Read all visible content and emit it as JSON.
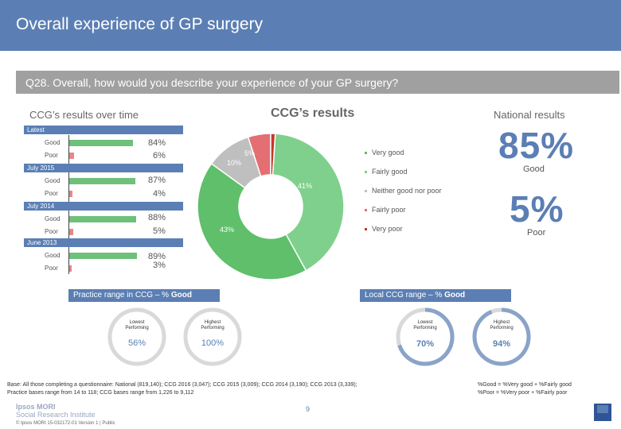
{
  "header": {
    "title": "Overall experience of GP surgery"
  },
  "question": {
    "text": "Q28. Overall, how would you describe your experience of your GP surgery?"
  },
  "sections": {
    "over_time": "CCG’s results over time",
    "ccg_results": "CCG’s results",
    "national": "National results"
  },
  "periods": [
    {
      "label": "Latest",
      "good_label": "Good",
      "poor_label": "Poor",
      "good": "84%",
      "poor": "6%",
      "good_value": 84,
      "poor_value": 6
    },
    {
      "label": "July 2015",
      "good_label": "Good",
      "poor_label": "Poor",
      "good": "87%",
      "poor": "4%",
      "good_value": 87,
      "poor_value": 4
    },
    {
      "label": "July 2014",
      "good_label": "Good",
      "poor_label": "Poor",
      "good": "88%",
      "poor": "5%",
      "good_value": 88,
      "poor_value": 5
    },
    {
      "label": "June 2013",
      "good_label": "Good",
      "poor_label": "Poor",
      "good": "89%",
      "poor": "3%",
      "good_value": 89,
      "poor_value": 3
    }
  ],
  "donut": {
    "slices": [
      {
        "label": "Very good",
        "value": 43,
        "color": "#5fbf6a"
      },
      {
        "label": "Fairly good",
        "value": 41,
        "color": "#7fd08c"
      },
      {
        "label": "Neither good nor poor",
        "value": 10,
        "color": "#bfbfbf"
      },
      {
        "label": "Fairly poor",
        "value": 5,
        "color": "#e36f72"
      },
      {
        "label": "Very poor",
        "value": 1,
        "color": "#c0392b"
      }
    ],
    "labels": {
      "very_good": "43%",
      "fairly_good": "41%",
      "neither": "10%",
      "fairly_poor": "5%"
    },
    "legend": [
      "Very good",
      "Fairly good",
      "Neither good nor poor",
      "Fairly poor",
      "Very poor"
    ],
    "legend_colors": [
      "#5fbf6a",
      "#7fd08c",
      "#bfbfbf",
      "#e36f72",
      "#c0392b"
    ]
  },
  "national": {
    "good_value": "85%",
    "good_label": "Good",
    "poor_value": "5%",
    "poor_label": "Poor"
  },
  "practice_range": {
    "title_prefix": "Practice range in CCG – % ",
    "title_bold": "Good",
    "lowest_label": "Lowest Performing",
    "highest_label": "Highest Performing",
    "lowest_value": "56%",
    "highest_value": "100%"
  },
  "local_range": {
    "title_prefix": "Local CCG range – % ",
    "title_bold": "Good",
    "lowest_label": "Lowest Performing",
    "highest_label": "Highest Performing",
    "lowest_value": "70%",
    "highest_value": "94%",
    "lowest_fraction": 0.7,
    "highest_fraction": 0.94
  },
  "footer": {
    "base_line1": "Base: All those completing a questionnaire: National (819,140); CCG 2016 (3,047); CCG 2015 (3,009); CCG 2014 (3,190); CCG 2013 (3,339);",
    "base_line2": "Practice bases range from 14 to 118; CCG bases range from 1,226 to 9,112",
    "def_good": "%Good = %Very good + %Fairly good",
    "def_poor": "%Poor = %Very poor + %Fairly poor",
    "page_number": "9",
    "logo_line1": "Ipsos MORI",
    "logo_line2": "Social Research Institute",
    "copyright": "© Ipsos MORI    15-032172-01 Version 1 | Public"
  }
}
